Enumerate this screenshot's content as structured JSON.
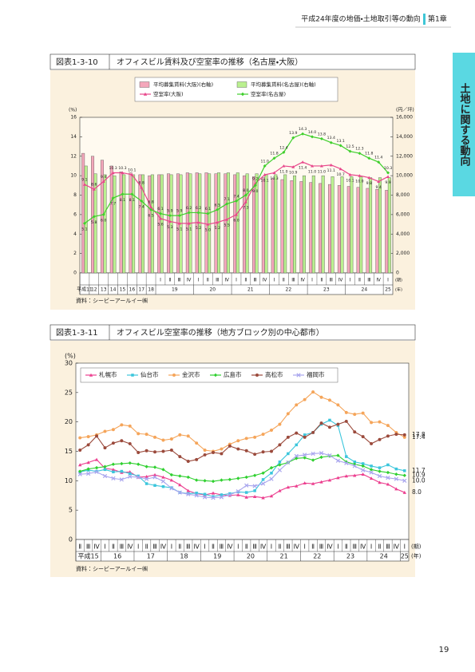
{
  "header": {
    "title": "平成24年度の地価・土地取引等の動向",
    "chapter": "第1章"
  },
  "side_tab": "土地に関する動向",
  "page_number": "19",
  "chart_data": [
    {
      "type": "combo",
      "figure_label": "図表1-3-10",
      "title": "オフィスビル賃料及び空室率の推移（名古屋・大阪）",
      "source": "資料：シービーアールイー㈱",
      "y_unit": "(%)",
      "y2_unit": "(円／坪)",
      "x_units": [
        "(期)",
        "(年)"
      ],
      "legend": "top-center",
      "legend_columns": 2,
      "grid": false,
      "categories": [
        null,
        null,
        null,
        null,
        null,
        null,
        null,
        null,
        "Ⅰ",
        "Ⅱ",
        "Ⅲ",
        "Ⅳ",
        "Ⅰ",
        "Ⅱ",
        "Ⅲ",
        "Ⅳ",
        "Ⅰ",
        "Ⅱ",
        "Ⅲ",
        "Ⅳ",
        "Ⅰ",
        "Ⅱ",
        "Ⅲ",
        "Ⅳ",
        "Ⅰ",
        "Ⅱ",
        "Ⅲ",
        "Ⅳ",
        "Ⅰ",
        "Ⅱ",
        "Ⅲ",
        "Ⅳ",
        "Ⅰ"
      ],
      "category_years": [
        "平成11",
        "12",
        "13",
        "14",
        "15",
        "16",
        "17",
        "18",
        "19",
        null,
        null,
        null,
        "20",
        null,
        null,
        null,
        "21",
        null,
        null,
        null,
        "22",
        null,
        null,
        null,
        "23",
        null,
        null,
        null,
        "24",
        null,
        null,
        null,
        "25"
      ],
      "ylim": [
        0,
        16
      ],
      "yticks": [
        0,
        2,
        4,
        6,
        8,
        10,
        12,
        14,
        16
      ],
      "y2lim": [
        0,
        16000
      ],
      "y2ticks": [
        0,
        {
          "value": 2000,
          "label": "2,000"
        },
        {
          "value": 4000,
          "label": "4,000"
        },
        {
          "value": 6000,
          "label": "6,000"
        },
        {
          "value": 8000,
          "label": "8,000"
        },
        {
          "value": 10000,
          "label": "10,000"
        },
        {
          "value": 12000,
          "label": "12,000"
        },
        {
          "value": 14000,
          "label": "14,000"
        },
        {
          "value": 16000,
          "label": "16,000"
        }
      ],
      "series": [
        {
          "name": "平均募集賃料(大阪)(右軸)",
          "type": "bar",
          "axis": "y2",
          "color": "#f4a7bb",
          "values": [
            12300,
            12000,
            11600,
            11000,
            10400,
            10300,
            10100,
            10000,
            10100,
            10200,
            10200,
            10300,
            10300,
            10300,
            10200,
            10200,
            10100,
            10000,
            9900,
            9800,
            9700,
            9600,
            9500,
            9400,
            9300,
            9200,
            9100,
            9000,
            8900,
            8800,
            8700,
            8600,
            8500
          ]
        },
        {
          "name": "平均募集賃料(名古屋)(右軸)",
          "type": "bar",
          "axis": "y2",
          "color": "#baf08f",
          "values": [
            11000,
            10200,
            10100,
            10000,
            10100,
            10100,
            10100,
            10100,
            10100,
            10100,
            10100,
            10200,
            10200,
            10200,
            10300,
            10300,
            10300,
            10200,
            10200,
            10100,
            10100,
            10100,
            10000,
            10000,
            10000,
            10000,
            9900,
            9900,
            9900,
            9900,
            9800,
            9800,
            9800
          ]
        },
        {
          "name": "空室率(大阪)",
          "type": "line",
          "marker": "triangle",
          "color": "#e8478b",
          "values": [
            9.1,
            8.6,
            9.4,
            10.3,
            10.3,
            10.1,
            8.8,
            6.8,
            5.6,
            5.3,
            5.1,
            5.1,
            5.2,
            5.0,
            5.2,
            5.5,
            6.0,
            7.3,
            9.2,
            10.1,
            10.3,
            11.0,
            10.9,
            11.4,
            11.0,
            11.0,
            11.1,
            10.7,
            10.1,
            10.0,
            9.8,
            9.4,
            9.9
          ],
          "value_labels": [
            "9.1",
            "8.6",
            "9.4",
            "10.3",
            "10.3",
            "10.1",
            "8.8",
            "6.8",
            "5.6",
            "5.3",
            "5.1",
            "5.1",
            "5.2",
            "5.0",
            "5.2",
            "5.5",
            "6.0",
            "7.3",
            "9.2",
            "10.1",
            "10.3",
            "11.0",
            "10.9",
            "11.4",
            "11.0",
            "11.0",
            "11.1",
            "10.7",
            "10.1",
            "10.0",
            "9.8",
            "9.4",
            "9.9"
          ]
        },
        {
          "name": "空室率(名古屋)",
          "type": "line",
          "marker": "diamond",
          "color": "#3fcf2c",
          "values": [
            5.1,
            5.8,
            6.0,
            7.7,
            8.1,
            8.1,
            7.4,
            6.5,
            6.1,
            5.9,
            5.9,
            6.2,
            6.2,
            6.1,
            6.5,
            7.1,
            7.4,
            8.0,
            9.0,
            11.0,
            11.8,
            12.4,
            13.9,
            14.3,
            14.0,
            13.8,
            13.4,
            13.1,
            12.5,
            12.3,
            11.8,
            11.4,
            10.3
          ],
          "value_labels": [
            "5.1",
            "5.8",
            "6.0",
            "7.7",
            "8.1",
            "8.1",
            "7.4",
            "6.5",
            "6.1",
            "5.9",
            "5.9",
            "6.2",
            "6.2",
            "6.1",
            "6.5",
            "7.1",
            "7.4",
            "8.0",
            "9.0",
            "11.0",
            "11.8",
            "12.4",
            "13.9",
            "14.3",
            "14.0",
            "13.8",
            "13.4",
            "13.1",
            "12.5",
            "12.3",
            "11.8",
            "11.4",
            "10.3"
          ]
        }
      ]
    },
    {
      "type": "line",
      "figure_label": "図表1-3-11",
      "title": "オフィスビル空室率の推移（地方ブロック別の中心都市）",
      "source": "資料：シービーアールイー㈱",
      "y_unit": "(%)",
      "x_units": [
        "(期)",
        "(年)"
      ],
      "legend": "top-left",
      "legend_columns": 6,
      "grid": false,
      "categories": [
        "Ⅱ",
        "Ⅲ",
        "Ⅳ",
        "Ⅰ",
        "Ⅱ",
        "Ⅲ",
        "Ⅳ",
        "Ⅰ",
        "Ⅱ",
        "Ⅲ",
        "Ⅳ",
        "Ⅰ",
        "Ⅱ",
        "Ⅲ",
        "Ⅳ",
        "Ⅰ",
        "Ⅱ",
        "Ⅲ",
        "Ⅳ",
        "Ⅰ",
        "Ⅱ",
        "Ⅲ",
        "Ⅳ",
        "Ⅰ",
        "Ⅱ",
        "Ⅲ",
        "Ⅳ",
        "Ⅰ",
        "Ⅱ",
        "Ⅲ",
        "Ⅳ",
        "Ⅰ",
        "Ⅱ",
        "Ⅲ",
        "Ⅳ",
        "Ⅰ",
        "Ⅱ",
        "Ⅲ",
        "Ⅳ",
        "Ⅰ"
      ],
      "category_years": [
        "平成15",
        null,
        null,
        "16",
        null,
        null,
        null,
        "17",
        null,
        null,
        null,
        "18",
        null,
        null,
        null,
        "19",
        null,
        null,
        null,
        "20",
        null,
        null,
        null,
        "21",
        null,
        null,
        null,
        "22",
        null,
        null,
        null,
        "23",
        null,
        null,
        null,
        "24",
        null,
        null,
        null,
        "25"
      ],
      "ylim": [
        0,
        30
      ],
      "yticks": [
        0,
        5,
        10,
        15,
        20,
        25,
        30
      ],
      "series": [
        {
          "name": "札幌市",
          "type": "line",
          "marker": "triangle",
          "color": "#ec3f8f",
          "end_label": "8.0",
          "values": [
            12.7,
            13.1,
            13.6,
            12.1,
            11.9,
            11.4,
            11.5,
            10.6,
            10.7,
            11.0,
            10.6,
            10.1,
            9.3,
            8.3,
            7.8,
            7.6,
            7.9,
            7.6,
            7.5,
            7.6,
            7.2,
            7.3,
            7.1,
            7.4,
            8.3,
            8.9,
            9.1,
            9.6,
            9.5,
            9.8,
            10.1,
            10.5,
            10.8,
            10.9,
            11.1,
            10.4,
            9.7,
            9.4,
            8.6,
            8.0
          ]
        },
        {
          "name": "仙台市",
          "type": "line",
          "marker": "square",
          "color": "#3cc6dc",
          "end_label": "11.7",
          "values": [
            11.5,
            11.8,
            11.6,
            11.9,
            11.5,
            11.6,
            11.2,
            10.8,
            9.5,
            9.2,
            9.0,
            8.8,
            8.0,
            7.8,
            7.9,
            7.7,
            7.3,
            7.6,
            7.8,
            8.1,
            8.0,
            8.3,
            10.2,
            11.3,
            13.2,
            14.6,
            16.1,
            17.8,
            18.2,
            19.6,
            20.3,
            19.4,
            14.1,
            13.2,
            12.9,
            12.5,
            12.2,
            12.7,
            12.0,
            11.7
          ]
        },
        {
          "name": "金沢市",
          "type": "line",
          "marker": "circle",
          "color": "#f5a55a",
          "end_label": "17.4",
          "values": [
            17.3,
            17.5,
            17.8,
            18.4,
            18.7,
            19.5,
            19.3,
            18.0,
            17.9,
            17.4,
            16.9,
            17.1,
            17.8,
            17.6,
            16.4,
            15.2,
            15.0,
            15.4,
            16.2,
            16.8,
            17.2,
            17.4,
            17.9,
            18.6,
            19.6,
            21.4,
            22.9,
            23.8,
            25.1,
            24.2,
            23.7,
            22.9,
            21.6,
            21.3,
            21.5,
            19.9,
            20.0,
            19.4,
            18.2,
            17.4
          ]
        },
        {
          "name": "広島市",
          "type": "line",
          "marker": "diamond",
          "color": "#2fd02f",
          "end_label": "10.9",
          "values": [
            11.6,
            12.0,
            12.2,
            12.4,
            12.8,
            12.9,
            13.0,
            12.8,
            12.4,
            12.3,
            11.9,
            11.0,
            10.8,
            10.6,
            10.1,
            10.0,
            9.9,
            10.1,
            10.2,
            10.4,
            10.6,
            10.9,
            11.3,
            12.2,
            12.7,
            13.1,
            13.8,
            13.9,
            13.5,
            14.0,
            14.2,
            14.3,
            13.2,
            12.8,
            12.5,
            11.9,
            11.6,
            11.4,
            11.1,
            10.9
          ]
        },
        {
          "name": "高松市",
          "type": "line",
          "marker": "circle",
          "color": "#9b4a3c",
          "end_label": "17.8",
          "values": [
            15.2,
            16.1,
            17.6,
            15.6,
            16.4,
            16.8,
            16.3,
            14.8,
            15.1,
            14.9,
            15.0,
            15.2,
            14.1,
            13.3,
            13.6,
            14.4,
            14.8,
            14.6,
            15.9,
            15.4,
            15.1,
            14.5,
            14.9,
            15.0,
            16.1,
            17.4,
            18.1,
            17.4,
            18.2,
            19.8,
            19.1,
            19.6,
            20.1,
            18.3,
            17.5,
            16.3,
            17.0,
            17.6,
            17.9,
            17.8
          ]
        },
        {
          "name": "福岡市",
          "type": "line",
          "marker": "x",
          "color": "#a9a6ee",
          "end_label": "10.0",
          "values": [
            11.1,
            11.2,
            11.5,
            10.8,
            10.4,
            10.2,
            10.7,
            10.6,
            10.3,
            10.6,
            9.9,
            8.7,
            8.0,
            7.7,
            7.5,
            7.2,
            7.1,
            7.2,
            7.6,
            8.2,
            9.2,
            9.1,
            9.5,
            10.3,
            11.8,
            13.1,
            14.2,
            14.4,
            14.6,
            14.7,
            14.3,
            13.4,
            13.0,
            12.5,
            11.8,
            11.4,
            10.8,
            10.5,
            10.3,
            10.0
          ]
        }
      ]
    }
  ]
}
